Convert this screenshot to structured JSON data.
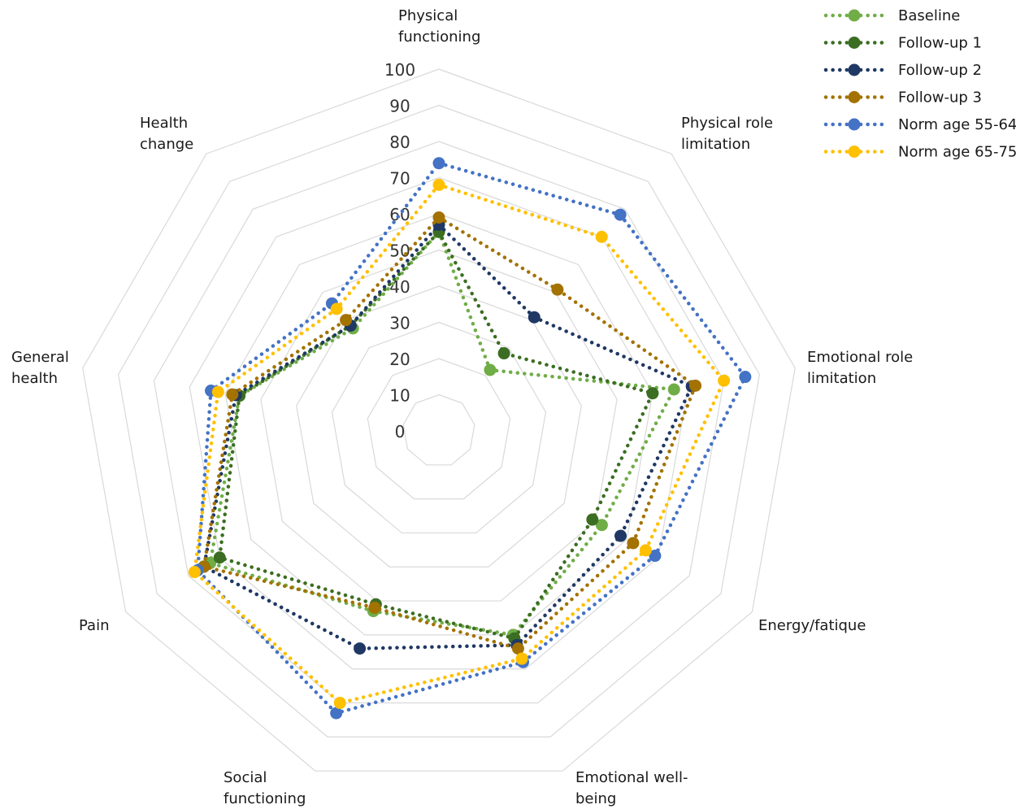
{
  "chart_data": {
    "type": "radar",
    "title": "",
    "axes": [
      [
        "Physical",
        "functioning"
      ],
      [
        "Physical role",
        "limitation"
      ],
      [
        "Emotional role",
        "limitation"
      ],
      [
        "Energy/fatique"
      ],
      [
        "Emotional well-",
        "being"
      ],
      [
        "Social",
        "functioning"
      ],
      [
        "Pain"
      ],
      [
        "General",
        "health"
      ],
      [
        "Health",
        "change"
      ]
    ],
    "r_ticks": [
      0,
      10,
      20,
      30,
      40,
      50,
      60,
      70,
      80,
      90,
      100
    ],
    "r_range": [
      0,
      100
    ],
    "grid": true,
    "legend_position": "top-right",
    "series": [
      {
        "name": "Baseline",
        "color": "#70ad47",
        "values": [
          55,
          22,
          66,
          52,
          60,
          53,
          73,
          56,
          37
        ]
      },
      {
        "name": "Follow-up 1",
        "color": "#3b6e22",
        "values": [
          55,
          28,
          60,
          49,
          61,
          51,
          70,
          56,
          38
        ]
      },
      {
        "name": "Follow-up 2",
        "color": "#1f3864",
        "values": [
          57,
          41,
          71,
          58,
          63,
          64,
          75,
          57,
          38
        ]
      },
      {
        "name": "Follow-up 3",
        "color": "#a37200",
        "values": [
          59,
          51,
          72,
          62,
          64,
          52,
          75,
          58,
          40
        ]
      },
      {
        "name": "Norm age 55-64",
        "color": "#4472c4",
        "values": [
          74,
          78,
          86,
          69,
          68,
          83,
          77,
          64,
          46
        ]
      },
      {
        "name": "Norm age 65-75",
        "color": "#ffc000",
        "values": [
          68,
          70,
          80,
          66,
          67,
          80,
          78,
          62,
          44
        ]
      }
    ]
  }
}
